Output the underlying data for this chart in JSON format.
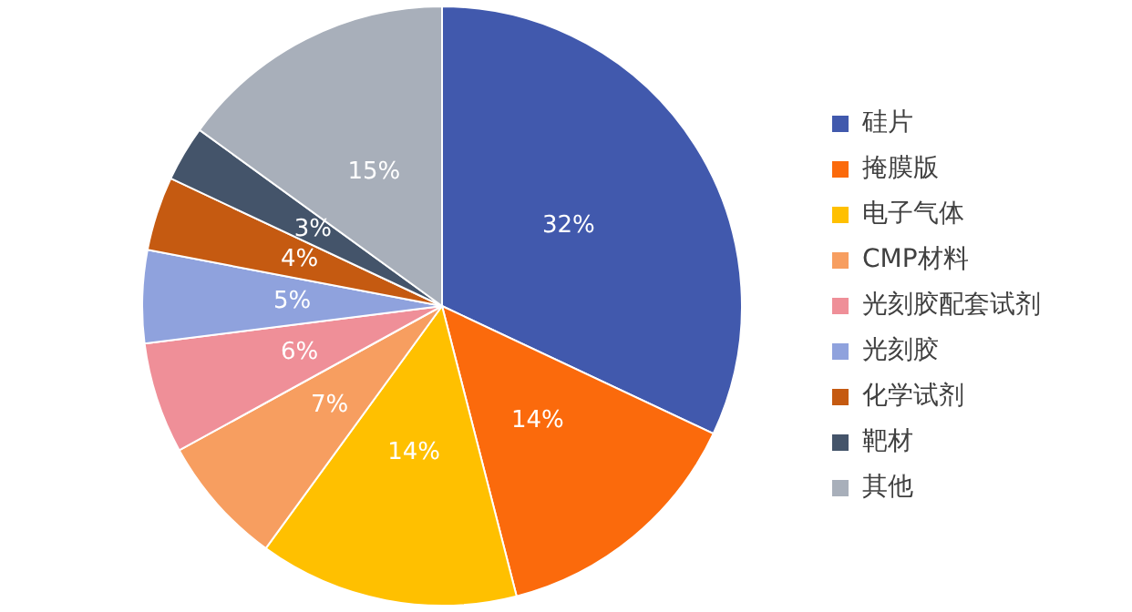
{
  "chart_data": {
    "type": "pie",
    "categories": [
      "硅片",
      "掩膜版",
      "电子气体",
      "CMP材料",
      "光刻胶配套试剂",
      "光刻胶",
      "化学试剂",
      "靶材",
      "其他"
    ],
    "values": [
      32,
      14,
      14,
      7,
      6,
      5,
      4,
      3,
      15
    ],
    "value_labels": [
      "32%",
      "14%",
      "14%",
      "7%",
      "6%",
      "5%",
      "4%",
      "3%",
      "15%"
    ],
    "colors": [
      "#4159ad",
      "#fb6a0c",
      "#ffc000",
      "#f79e60",
      "#ef8f98",
      "#8fa2dd",
      "#c55a11",
      "#44546a",
      "#a8afba"
    ],
    "legend": "right"
  }
}
